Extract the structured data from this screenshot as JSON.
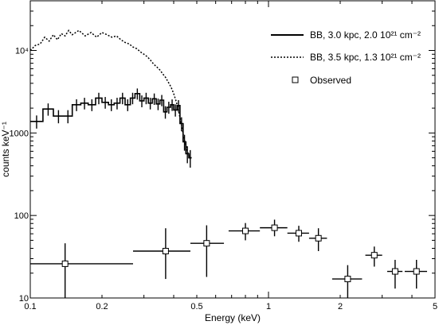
{
  "chart_data": {
    "type": "line",
    "xlabel": "Energy (keV)",
    "ylabel": "counts keV⁻¹",
    "x_scale": "log",
    "y_scale": "log",
    "xlim": [
      0.1,
      5
    ],
    "ylim": [
      10,
      40000
    ],
    "x_tick_labels": [
      {
        "value": 0.1,
        "label": "0.1"
      },
      {
        "value": 0.2,
        "label": "0.2"
      },
      {
        "value": 0.5,
        "label": "0.5"
      },
      {
        "value": 1,
        "label": "1"
      },
      {
        "value": 2,
        "label": "2"
      },
      {
        "value": 5,
        "label": "5"
      }
    ],
    "y_tick_labels": [
      {
        "value": 10,
        "label": "10"
      },
      {
        "value": 100,
        "label": "100"
      },
      {
        "value": 1000,
        "label": "1000"
      },
      {
        "value": 10000,
        "label": "10⁴"
      }
    ],
    "grid": false,
    "legend_position": "top-right",
    "series": [
      {
        "name": "BB, 3.0 kpc, 2.0 10²¹ cm⁻²",
        "style": "solid-step",
        "x": [
          0.1,
          0.113,
          0.125,
          0.138,
          0.15,
          0.163,
          0.175,
          0.188,
          0.2,
          0.213,
          0.225,
          0.238,
          0.25,
          0.263,
          0.275,
          0.288,
          0.3,
          0.313,
          0.325,
          0.338,
          0.35,
          0.363,
          0.375,
          0.388,
          0.4,
          0.413,
          0.425,
          0.438,
          0.45,
          0.463
        ],
        "y": [
          1380,
          1950,
          1600,
          1600,
          2200,
          2300,
          2200,
          2650,
          2350,
          2200,
          2300,
          2650,
          2200,
          2650,
          3000,
          2450,
          2650,
          2300,
          2600,
          2250,
          2500,
          1800,
          2050,
          2200,
          1900,
          2150,
          1300,
          780,
          560,
          500
        ],
        "y_err": [
          250,
          330,
          290,
          290,
          360,
          370,
          360,
          420,
          380,
          360,
          370,
          420,
          360,
          420,
          460,
          400,
          420,
          370,
          410,
          360,
          390,
          310,
          340,
          350,
          320,
          350,
          250,
          170,
          130,
          120
        ]
      },
      {
        "name": "BB, 3.5 kpc, 1.3 10²¹ cm⁻²",
        "style": "dotted",
        "x": [
          0.1,
          0.105,
          0.11,
          0.115,
          0.12,
          0.125,
          0.13,
          0.135,
          0.14,
          0.145,
          0.15,
          0.16,
          0.17,
          0.18,
          0.19,
          0.2,
          0.21,
          0.22,
          0.23,
          0.24,
          0.25,
          0.26,
          0.27,
          0.28,
          0.29,
          0.3,
          0.31,
          0.32,
          0.33,
          0.34,
          0.35,
          0.36,
          0.37,
          0.38,
          0.39,
          0.4,
          0.41,
          0.42,
          0.43,
          0.44,
          0.45,
          0.46,
          0.47
        ],
        "y": [
          10000,
          11500,
          12000,
          14500,
          13000,
          15500,
          13500,
          16000,
          15000,
          17500,
          15500,
          17500,
          15000,
          16500,
          14500,
          16500,
          15500,
          14500,
          15000,
          13500,
          12500,
          12000,
          11000,
          10500,
          9600,
          9000,
          8400,
          7600,
          6800,
          6300,
          5800,
          5200,
          4700,
          4100,
          3600,
          3000,
          2400,
          1800,
          1300,
          900,
          700,
          560,
          480
        ]
      },
      {
        "name": "Observed",
        "style": "square-markers",
        "x": [
          0.14,
          0.37,
          0.55,
          0.8,
          1.06,
          1.34,
          1.62,
          2.15,
          2.78,
          3.4,
          4.18
        ],
        "y": [
          26,
          37,
          46,
          65,
          71,
          61,
          53,
          17,
          33,
          21,
          21
        ],
        "x_err_low": [
          0.04,
          0.1,
          0.08,
          0.12,
          0.14,
          0.14,
          0.14,
          0.3,
          0.23,
          0.25,
          0.45
        ],
        "x_err_high": [
          0.13,
          0.1,
          0.1,
          0.12,
          0.14,
          0.14,
          0.14,
          0.32,
          0.22,
          0.25,
          0.45
        ],
        "y_err_low": [
          16,
          20,
          28,
          15,
          15,
          13,
          16,
          7,
          9,
          8,
          8
        ],
        "y_err_high": [
          20,
          33,
          30,
          16,
          18,
          14,
          17,
          8,
          9,
          8,
          8
        ]
      }
    ]
  }
}
